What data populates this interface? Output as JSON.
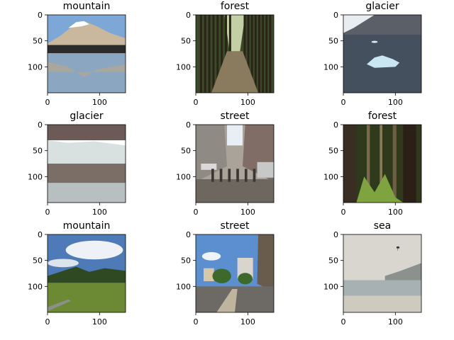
{
  "chart_data": {
    "type": "image-grid",
    "grid": {
      "rows": 3,
      "cols": 3
    },
    "axes": {
      "x_ticks": [
        "0",
        "100"
      ],
      "x_tick_values": [
        0,
        100
      ],
      "y_ticks": [
        "0",
        "50",
        "100"
      ],
      "y_tick_values": [
        0,
        50,
        100
      ],
      "xlim": [
        0,
        150
      ],
      "ylim": [
        150,
        0
      ]
    },
    "panels": [
      {
        "title": "mountain",
        "scene": "mountain-lake"
      },
      {
        "title": "forest",
        "scene": "forest-path"
      },
      {
        "title": "glacier",
        "scene": "glacier-iceberg"
      },
      {
        "title": "glacier",
        "scene": "glacier-wall"
      },
      {
        "title": "street",
        "scene": "city-street"
      },
      {
        "title": "forest",
        "scene": "dense-forest"
      },
      {
        "title": "mountain",
        "scene": "green-hills"
      },
      {
        "title": "street",
        "scene": "seaside-street"
      },
      {
        "title": "sea",
        "scene": "hazy-sea"
      }
    ]
  }
}
